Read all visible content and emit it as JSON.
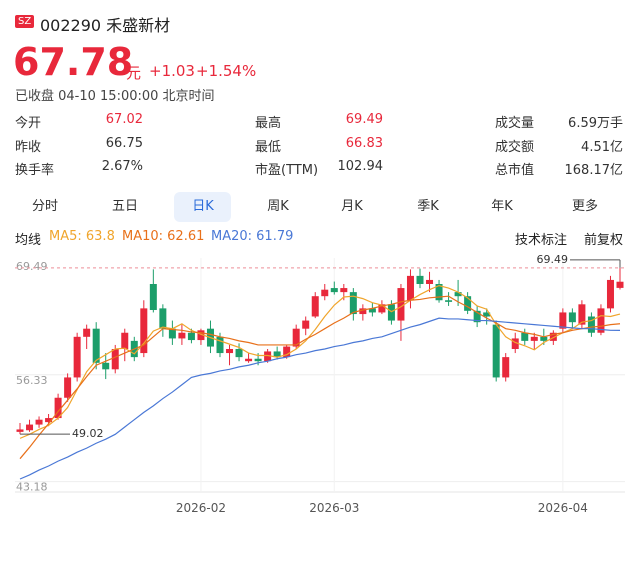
{
  "header": {
    "exchange": "SZ",
    "code_name": "002290 禾盛新材"
  },
  "quote": {
    "price": "67.78",
    "unit": "元",
    "change": "+1.03",
    "change_pct": "+1.54%",
    "status": "已收盘 04-10 15:00:00 北京时间"
  },
  "stats": [
    [
      {
        "label": "今开",
        "value": "67.02"
      },
      {
        "label": "最高",
        "value": "69.49"
      },
      {
        "label": "成交量",
        "value": "6.59万手"
      }
    ],
    [
      {
        "label": "昨收",
        "value": "66.75"
      },
      {
        "label": "最低",
        "value": "66.83"
      },
      {
        "label": "成交额",
        "value": "4.51亿"
      }
    ],
    [
      {
        "label": "换手率",
        "value": "2.67%"
      },
      {
        "label": "市盈(TTM)",
        "value": "102.94"
      },
      {
        "label": "总市值",
        "value": "168.17亿"
      }
    ]
  ],
  "tabs": [
    "分时",
    "五日",
    "日K",
    "周K",
    "月K",
    "季K",
    "年K",
    "更多"
  ],
  "indicator_label": "均线",
  "tools": [
    "技术标注",
    "前复权"
  ],
  "chart_data": {
    "type": "candlestick",
    "up_color": "#e8283b",
    "down_color": "#1c9e6a",
    "categories": [
      null,
      null,
      null,
      null,
      null,
      null,
      null,
      null,
      null,
      null,
      null,
      null,
      null,
      null,
      null,
      null,
      null,
      null,
      null,
      "2026-02",
      null,
      null,
      null,
      null,
      null,
      null,
      null,
      null,
      null,
      null,
      null,
      null,
      null,
      "2026-03",
      null,
      null,
      null,
      null,
      null,
      null,
      null,
      null,
      null,
      null,
      null,
      null,
      null,
      null,
      null,
      null,
      null,
      null,
      null,
      null,
      null,
      null,
      null,
      "2026-04",
      null,
      null,
      null,
      null,
      null,
      null
    ],
    "open": [
      49.3,
      49.5,
      50.2,
      50.5,
      51.0,
      53.5,
      56.0,
      61.0,
      62.0,
      57.8,
      57.0,
      59.5,
      60.5,
      59.0,
      67.5,
      64.5,
      62.0,
      60.8,
      61.5,
      60.6,
      62.0,
      61.0,
      59.0,
      59.5,
      58.0,
      58.3,
      58.0,
      59.2,
      58.5,
      59.8,
      62.0,
      63.5,
      66.0,
      67.0,
      66.5,
      66.5,
      63.8,
      64.5,
      64.0,
      65.0,
      63.0,
      65.5,
      68.5,
      67.5,
      67.5,
      65.5,
      66.5,
      66.0,
      64.2,
      64.0,
      62.5,
      56.0,
      59.5,
      61.5,
      60.5,
      61.0,
      60.5,
      62.0,
      64.0,
      62.5,
      63.5,
      61.5,
      64.5,
      67.02
    ],
    "high": [
      50.4,
      50.8,
      51.2,
      51.5,
      54.0,
      56.5,
      61.5,
      62.5,
      62.8,
      59.0,
      60.0,
      62.0,
      61.0,
      65.5,
      69.3,
      65.0,
      63.0,
      62.5,
      62.0,
      62.0,
      63.0,
      61.5,
      60.0,
      60.2,
      59.0,
      59.0,
      59.5,
      59.8,
      60.0,
      62.5,
      63.5,
      66.5,
      67.5,
      67.8,
      67.5,
      67.0,
      65.0,
      65.2,
      65.5,
      65.5,
      67.5,
      69.3,
      69.4,
      69.0,
      68.0,
      66.5,
      68.0,
      66.5,
      64.8,
      64.5,
      63.0,
      59.0,
      61.5,
      62.0,
      61.5,
      62.0,
      61.8,
      64.5,
      64.5,
      65.5,
      64.0,
      65.0,
      68.5,
      69.49
    ],
    "low": [
      49.02,
      49.3,
      49.8,
      50.0,
      50.8,
      53.0,
      55.5,
      59.5,
      57.0,
      55.8,
      56.5,
      58.0,
      58.0,
      58.5,
      64.0,
      61.0,
      60.0,
      60.0,
      60.2,
      60.0,
      59.0,
      58.5,
      57.5,
      58.0,
      57.8,
      57.5,
      57.8,
      58.2,
      58.3,
      59.5,
      61.2,
      63.3,
      65.5,
      66.2,
      65.5,
      63.0,
      63.0,
      63.5,
      63.8,
      62.5,
      60.5,
      64.5,
      67.0,
      66.5,
      65.2,
      64.8,
      64.8,
      63.8,
      62.2,
      62.5,
      55.5,
      55.5,
      59.0,
      60.0,
      59.5,
      60.0,
      60.0,
      61.5,
      62.0,
      62.0,
      61.0,
      61.2,
      64.0,
      66.83
    ],
    "close": [
      49.6,
      50.2,
      50.8,
      51.0,
      53.5,
      56.0,
      61.0,
      62.0,
      57.8,
      57.0,
      59.5,
      61.5,
      58.5,
      64.5,
      64.3,
      62.0,
      60.8,
      61.5,
      60.6,
      61.8,
      59.8,
      59.0,
      59.5,
      58.5,
      58.3,
      58.0,
      59.2,
      58.5,
      59.8,
      62.0,
      63.0,
      66.0,
      66.8,
      66.5,
      67.0,
      63.8,
      64.5,
      64.0,
      65.0,
      63.0,
      67.0,
      68.5,
      67.5,
      68.0,
      65.5,
      65.3,
      66.0,
      64.2,
      62.8,
      63.5,
      56.0,
      58.5,
      60.8,
      60.5,
      61.0,
      60.5,
      61.5,
      64.0,
      62.8,
      65.0,
      61.5,
      64.5,
      68.0,
      67.78
    ],
    "series": [
      {
        "name": "MA5: 63.8",
        "color": "#f0a52c",
        "values": [
          48.5,
          49.0,
          49.6,
          50.1,
          51.0,
          52.3,
          54.5,
          56.7,
          58.1,
          58.8,
          59.5,
          59.6,
          58.9,
          60.2,
          61.7,
          62.2,
          62.0,
          62.6,
          61.8,
          61.3,
          60.9,
          60.5,
          60.1,
          59.7,
          59.0,
          58.7,
          58.7,
          58.5,
          58.8,
          59.5,
          60.5,
          61.9,
          63.5,
          64.9,
          65.9,
          66.0,
          65.7,
          65.2,
          64.9,
          64.1,
          64.7,
          65.5,
          66.2,
          66.8,
          67.3,
          67.0,
          66.5,
          65.8,
          64.8,
          64.4,
          62.5,
          61.0,
          60.3,
          59.9,
          59.4,
          60.3,
          60.9,
          61.5,
          62.0,
          62.8,
          63.0,
          63.6,
          63.5,
          63.8
        ]
      },
      {
        "name": "MA10: 62.61",
        "color": "#e8701a",
        "values": [
          46.0,
          47.4,
          48.9,
          50.3,
          51.8,
          53.2,
          54.6,
          56.1,
          57.5,
          58.0,
          58.5,
          59.0,
          59.5,
          60.0,
          61.0,
          62.0,
          61.9,
          61.8,
          61.6,
          61.5,
          61.3,
          61.0,
          60.8,
          60.5,
          60.3,
          60.0,
          60.0,
          60.0,
          60.0,
          60.0,
          60.7,
          61.3,
          62.0,
          62.7,
          63.3,
          64.0,
          64.3,
          64.5,
          64.8,
          65.0,
          65.3,
          65.5,
          65.6,
          65.8,
          65.9,
          66.0,
          65.3,
          64.7,
          64.0,
          63.3,
          62.7,
          62.0,
          61.8,
          61.5,
          61.3,
          61.0,
          61.3,
          61.5,
          61.8,
          62.0,
          62.2,
          62.3,
          62.5,
          62.61
        ]
      },
      {
        "name": "MA20: 61.79",
        "color": "#4a78d6",
        "values": [
          43.5,
          44.0,
          44.6,
          45.1,
          45.7,
          46.2,
          46.8,
          47.3,
          47.9,
          48.4,
          49.0,
          49.9,
          50.8,
          51.7,
          52.5,
          53.4,
          54.2,
          55.1,
          56.0,
          56.3,
          56.5,
          56.8,
          57.0,
          57.3,
          57.5,
          57.8,
          58.0,
          58.3,
          58.5,
          58.8,
          59.0,
          59.3,
          59.5,
          59.8,
          60.0,
          60.3,
          60.5,
          60.8,
          61.0,
          61.4,
          61.8,
          62.2,
          62.5,
          62.9,
          63.3,
          63.2,
          63.2,
          63.1,
          63.0,
          63.0,
          62.9,
          62.8,
          62.7,
          62.6,
          62.5,
          62.4,
          62.3,
          62.2,
          62.1,
          62.0,
          62.0,
          61.9,
          61.8,
          61.79
        ]
      }
    ],
    "ylim": [
      41.9,
      70.7
    ],
    "yticks": [
      69.49,
      56.33,
      43.18
    ]
  }
}
